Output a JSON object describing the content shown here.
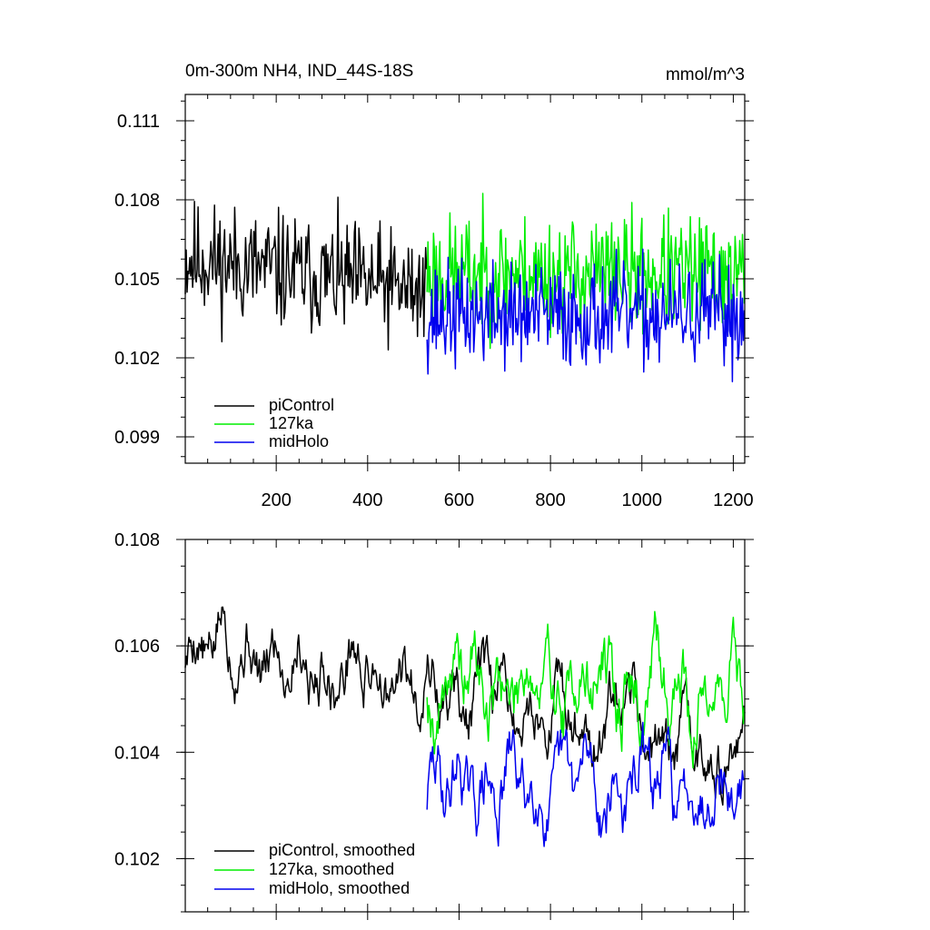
{
  "chart_data": [
    {
      "type": "line",
      "title": "0m-300m NH4, IND_44S-18S",
      "title_right": "mmol/m^3",
      "xlim": [
        1,
        1225
      ],
      "ylim": [
        0.098,
        0.112
      ],
      "xticks": [
        200,
        400,
        600,
        800,
        1000,
        1200
      ],
      "xtick_labels": [
        "200",
        "400",
        "600",
        "800",
        "1000",
        "1200"
      ],
      "yticks": [
        0.099,
        0.102,
        0.105,
        0.108,
        0.111
      ],
      "ytick_labels": [
        "0.099",
        "0.102",
        "0.105",
        "0.108",
        "0.111"
      ],
      "grid": false,
      "legend_position": "bottom-left",
      "series": [
        {
          "name": "piControl",
          "color": "#000000",
          "x_start": 1,
          "x_end": 530,
          "mean": 0.1058,
          "mean_end": 0.1045,
          "amplitude": 0.0019,
          "seed": 11
        },
        {
          "name": "127ka",
          "color": "#00ee00",
          "x_start": 530,
          "x_end": 1225,
          "mean": 0.1052,
          "mean_end": 0.1052,
          "amplitude": 0.0019,
          "seed": 23
        },
        {
          "name": "midHolo",
          "color": "#0000ee",
          "x_start": 530,
          "x_end": 1225,
          "mean": 0.1036,
          "mean_end": 0.1036,
          "amplitude": 0.0017,
          "seed": 37
        }
      ]
    },
    {
      "type": "line",
      "xlim": [
        1,
        1225
      ],
      "ylim": [
        0.101,
        0.108
      ],
      "xticks": [
        200,
        400,
        600,
        800,
        1000,
        1200
      ],
      "yticks": [
        0.102,
        0.104,
        0.106,
        0.108
      ],
      "ytick_labels": [
        "0.102",
        "0.104",
        "0.106",
        "0.108"
      ],
      "grid": false,
      "legend_position": "bottom-left",
      "series": [
        {
          "name": "piControl, smoothed",
          "color": "#000000",
          "x_start": 1,
          "x_end": 1225,
          "mean": 0.1062,
          "mean_end": 0.1039,
          "amplitude": 0.0009,
          "seed": 5
        },
        {
          "name": "127ka, smoothed",
          "color": "#00ee00",
          "x_start": 530,
          "x_end": 1225,
          "mean": 0.1053,
          "mean_end": 0.1052,
          "amplitude": 0.0011,
          "seed": 19
        },
        {
          "name": "midHolo, smoothed",
          "color": "#0000ee",
          "x_start": 530,
          "x_end": 1225,
          "mean": 0.1033,
          "mean_end": 0.1034,
          "amplitude": 0.001,
          "seed": 29
        }
      ]
    }
  ]
}
